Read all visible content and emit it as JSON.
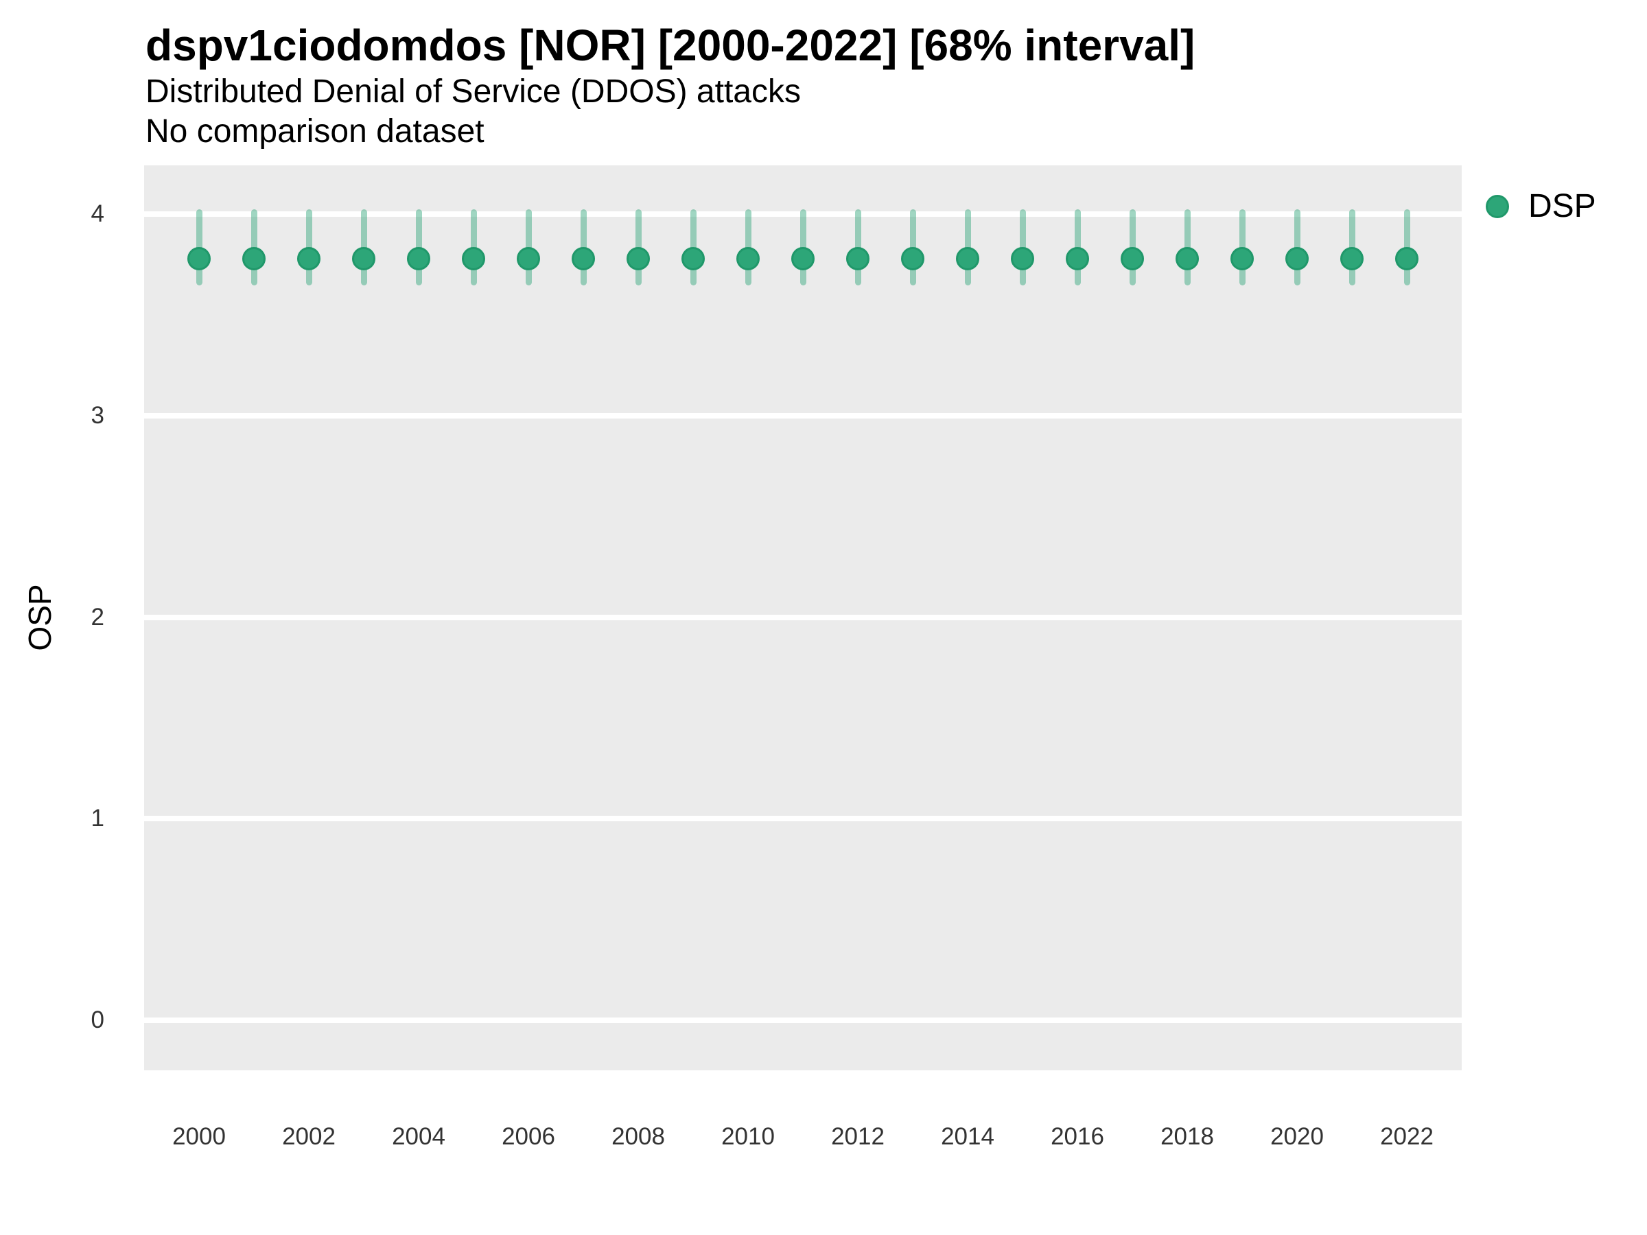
{
  "colors": {
    "point_fill": "#2DA678",
    "point_border": "#20986A",
    "interval_line": "rgba(44,165,120,0.45)",
    "panel_background": "#EBEBEB",
    "gridline": "#FFFFFF",
    "title_text": "#000000",
    "tick_text": "#333333"
  },
  "chart_data": {
    "type": "scatter",
    "style": "pointrange",
    "title": "dspv1ciodomdos [NOR] [2000-2022] [68% interval]",
    "subtitle": "Distributed Denial of Service (DDOS) attacks",
    "note": "No comparison dataset",
    "xlabel": "",
    "ylabel": "OSP",
    "interval_label": "68% interval",
    "xlim": [
      1999,
      2023
    ],
    "ylim": [
      -0.25,
      4.25
    ],
    "x_ticks": [
      2000,
      2002,
      2004,
      2006,
      2008,
      2010,
      2012,
      2014,
      2016,
      2018,
      2020,
      2022
    ],
    "y_ticks": [
      4,
      3,
      2,
      1,
      0
    ],
    "grid": "horizontal-major-only",
    "legend_position": "right",
    "series": [
      {
        "name": "DSP",
        "points": [
          {
            "x": 2000,
            "y": 3.78,
            "lower": 3.66,
            "upper": 4.01
          },
          {
            "x": 2001,
            "y": 3.78,
            "lower": 3.66,
            "upper": 4.01
          },
          {
            "x": 2002,
            "y": 3.78,
            "lower": 3.66,
            "upper": 4.01
          },
          {
            "x": 2003,
            "y": 3.78,
            "lower": 3.66,
            "upper": 4.01
          },
          {
            "x": 2004,
            "y": 3.78,
            "lower": 3.66,
            "upper": 4.01
          },
          {
            "x": 2005,
            "y": 3.78,
            "lower": 3.66,
            "upper": 4.01
          },
          {
            "x": 2006,
            "y": 3.78,
            "lower": 3.66,
            "upper": 4.01
          },
          {
            "x": 2007,
            "y": 3.78,
            "lower": 3.66,
            "upper": 4.01
          },
          {
            "x": 2008,
            "y": 3.78,
            "lower": 3.66,
            "upper": 4.01
          },
          {
            "x": 2009,
            "y": 3.78,
            "lower": 3.66,
            "upper": 4.01
          },
          {
            "x": 2010,
            "y": 3.78,
            "lower": 3.66,
            "upper": 4.01
          },
          {
            "x": 2011,
            "y": 3.78,
            "lower": 3.66,
            "upper": 4.01
          },
          {
            "x": 2012,
            "y": 3.78,
            "lower": 3.66,
            "upper": 4.01
          },
          {
            "x": 2013,
            "y": 3.78,
            "lower": 3.66,
            "upper": 4.01
          },
          {
            "x": 2014,
            "y": 3.78,
            "lower": 3.66,
            "upper": 4.01
          },
          {
            "x": 2015,
            "y": 3.78,
            "lower": 3.66,
            "upper": 4.01
          },
          {
            "x": 2016,
            "y": 3.78,
            "lower": 3.66,
            "upper": 4.01
          },
          {
            "x": 2017,
            "y": 3.78,
            "lower": 3.66,
            "upper": 4.01
          },
          {
            "x": 2018,
            "y": 3.78,
            "lower": 3.66,
            "upper": 4.01
          },
          {
            "x": 2019,
            "y": 3.78,
            "lower": 3.66,
            "upper": 4.01
          },
          {
            "x": 2020,
            "y": 3.78,
            "lower": 3.66,
            "upper": 4.01
          },
          {
            "x": 2021,
            "y": 3.78,
            "lower": 3.66,
            "upper": 4.01
          },
          {
            "x": 2022,
            "y": 3.78,
            "lower": 3.66,
            "upper": 4.01
          }
        ]
      }
    ]
  }
}
